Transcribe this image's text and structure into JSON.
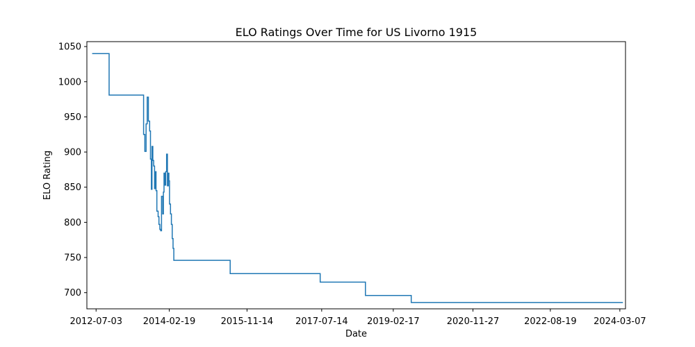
{
  "chart_data": {
    "type": "line",
    "title": "ELO Ratings Over Time for US Livorno 1915",
    "xlabel": "Date",
    "ylabel": "ELO Rating",
    "x_tick_labels": [
      "2012-07-03",
      "2014-02-19",
      "2015-11-14",
      "2017-07-14",
      "2019-02-17",
      "2020-11-27",
      "2022-08-19",
      "2024-03-07"
    ],
    "y_tick_labels": [
      "700",
      "750",
      "800",
      "850",
      "900",
      "950",
      "1000",
      "1050"
    ],
    "x_ticks": [
      "2012-07-03",
      "2014-02-19",
      "2015-11-14",
      "2017-07-14",
      "2019-02-17",
      "2020-11-27",
      "2022-08-19",
      "2024-03-07"
    ],
    "y_ticks": [
      700,
      750,
      800,
      850,
      900,
      950,
      1000,
      1050
    ],
    "xlim": [
      "2012-04-19",
      "2024-04-22"
    ],
    "ylim": [
      677,
      1057
    ],
    "grid": false,
    "line_color": "#1f77b4",
    "series": [
      {
        "style": "step",
        "points": [
          [
            "2012-06-01",
            1040
          ],
          [
            "2012-10-17",
            981
          ],
          [
            "2013-07-25",
            925
          ],
          [
            "2013-08-04",
            901
          ],
          [
            "2013-08-14",
            940
          ],
          [
            "2013-08-23",
            978
          ],
          [
            "2013-09-02",
            944
          ],
          [
            "2013-09-12",
            930
          ],
          [
            "2013-09-19",
            890
          ],
          [
            "2013-09-26",
            847
          ],
          [
            "2013-10-01",
            908
          ],
          [
            "2013-10-08",
            888
          ],
          [
            "2013-10-15",
            880
          ],
          [
            "2013-10-22",
            848
          ],
          [
            "2013-10-27",
            872
          ],
          [
            "2013-11-03",
            845
          ],
          [
            "2013-11-10",
            816
          ],
          [
            "2013-11-20",
            808
          ],
          [
            "2013-11-27",
            797
          ],
          [
            "2013-12-04",
            790
          ],
          [
            "2013-12-11",
            788
          ],
          [
            "2013-12-18",
            837
          ],
          [
            "2013-12-28",
            812
          ],
          [
            "2014-01-02",
            843
          ],
          [
            "2014-01-07",
            870
          ],
          [
            "2014-01-14",
            853
          ],
          [
            "2014-01-21",
            872
          ],
          [
            "2014-01-28",
            897
          ],
          [
            "2014-02-04",
            852
          ],
          [
            "2014-02-11",
            870
          ],
          [
            "2014-02-16",
            859
          ],
          [
            "2014-02-21",
            826
          ],
          [
            "2014-03-01",
            812
          ],
          [
            "2014-03-08",
            797
          ],
          [
            "2014-03-15",
            777
          ],
          [
            "2014-03-22",
            763
          ],
          [
            "2014-03-28",
            746
          ],
          [
            "2015-06-30",
            727
          ],
          [
            "2017-07-02",
            715
          ],
          [
            "2018-07-05",
            696
          ],
          [
            "2019-07-13",
            686
          ],
          [
            "2024-04-01",
            686
          ]
        ]
      }
    ]
  }
}
